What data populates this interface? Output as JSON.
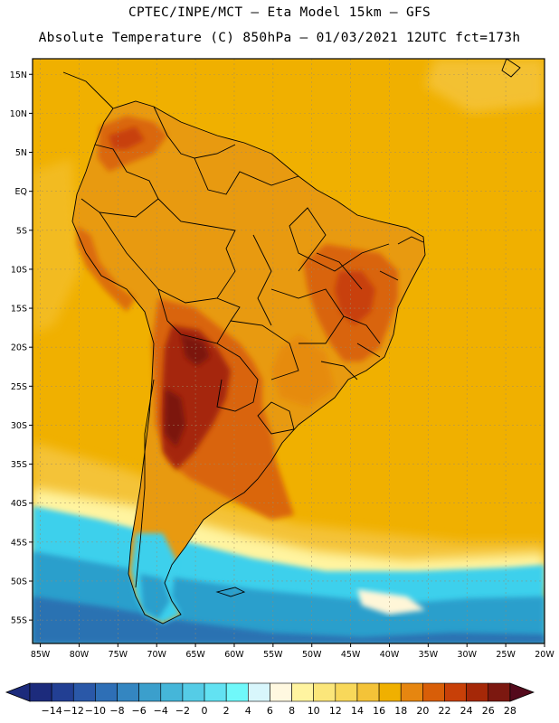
{
  "header": {
    "line1": "CPTEC/INPE/MCT –  Eta Model 15km – GFS",
    "line2": "Absolute Temperature (C) 850hPa – 01/03/2021 12UTC fct=173h"
  },
  "map": {
    "lon_range": [
      -86,
      -20
    ],
    "lat_range": [
      -58,
      17
    ],
    "lat_ticks": [
      "15N",
      "10N",
      "5N",
      "EQ",
      "5S",
      "10S",
      "15S",
      "20S",
      "25S",
      "30S",
      "35S",
      "40S",
      "45S",
      "50S",
      "55S"
    ],
    "lon_ticks": [
      "85W",
      "80W",
      "75W",
      "70W",
      "65W",
      "60W",
      "55W",
      "50W",
      "45W",
      "40W",
      "35W",
      "30W",
      "25W",
      "20W"
    ],
    "colors": {
      "ocean_warm": "#f0b000",
      "land_warm": "#e89a10",
      "hot": "#cf5a10",
      "very_hot": "#8a2808",
      "cool_band": "#f4c338",
      "cold_cyan": "#3cd0ec",
      "cold_blue": "#2a8fc0",
      "pale": "#fff6d8"
    }
  },
  "colorbar": {
    "labels": [
      "-14",
      "-12",
      "-10",
      "-8",
      "-6",
      "-4",
      "-2",
      "0",
      "2",
      "4",
      "6",
      "8",
      "10",
      "12",
      "14",
      "16",
      "18",
      "20",
      "22",
      "24",
      "26",
      "28"
    ],
    "colors": [
      "#1c2b7c",
      "#223f93",
      "#2a58a8",
      "#2e6fb6",
      "#3486c1",
      "#3b9fcc",
      "#45b6d9",
      "#55cce6",
      "#62e2f2",
      "#70f8fa",
      "#d8f6fc",
      "#fff8e0",
      "#fff4a0",
      "#fbe67a",
      "#f8d85a",
      "#f4c338",
      "#f0b000",
      "#e68610",
      "#d85e08",
      "#c84008",
      "#a52808",
      "#7c1810",
      "#540a1c"
    ]
  }
}
